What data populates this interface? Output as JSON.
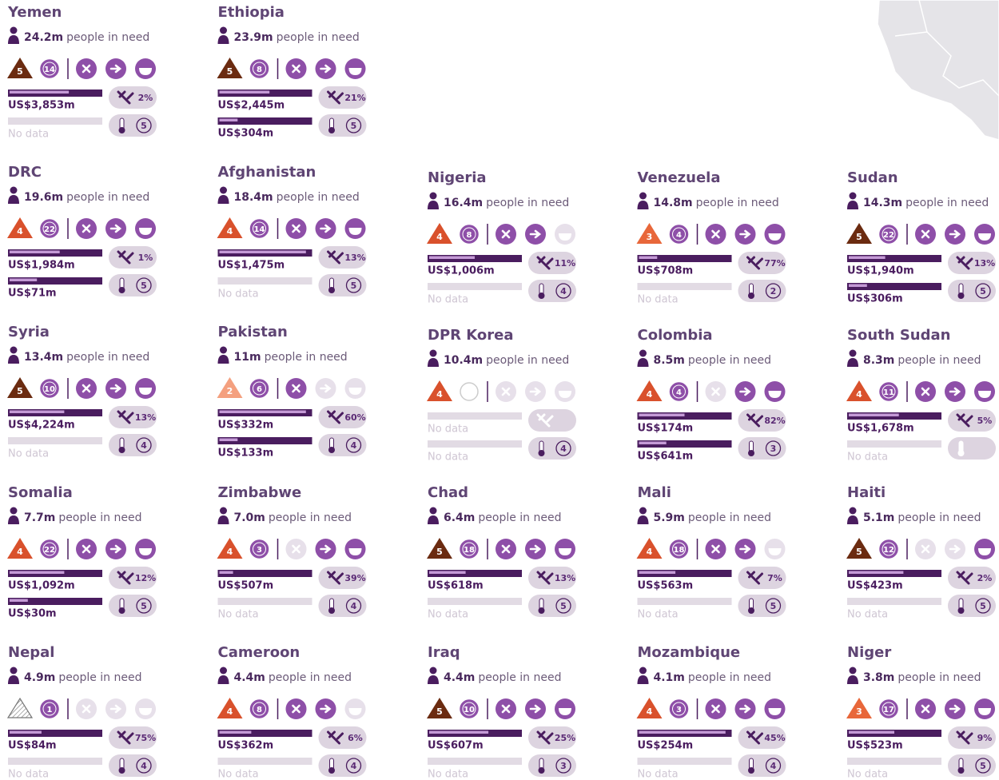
{
  "pin_label": "people in need",
  "severity_colors": {
    "2": "#f4a07f",
    "3": "#e8673a",
    "4": "#d9512c",
    "5": "#6b2b10"
  },
  "countries": [
    {
      "name": "Yemen",
      "pin": "24.2m",
      "severity": 5,
      "duration": 14,
      "icons": [
        true,
        true,
        true
      ],
      "funding": [
        {
          "label": "US$3,853m",
          "fill": 0.65
        },
        {
          "label": "No data",
          "fill": null
        }
      ],
      "vaccine": "2%",
      "temperature": 5
    },
    {
      "name": "Ethiopia",
      "pin": "23.9m",
      "severity": 5,
      "duration": 8,
      "icons": [
        true,
        true,
        true
      ],
      "funding": [
        {
          "label": "US$2,445m",
          "fill": 0.55
        },
        {
          "label": "US$304m",
          "fill": 0.2
        }
      ],
      "vaccine": "21%",
      "temperature": 5
    },
    {
      "name": "DRC",
      "pin": "19.6m",
      "severity": 4,
      "duration": 22,
      "icons": [
        true,
        true,
        true
      ],
      "funding": [
        {
          "label": "US$1,984m",
          "fill": 0.55
        },
        {
          "label": "US$71m",
          "fill": 0.3
        }
      ],
      "vaccine": "1%",
      "temperature": 5
    },
    {
      "name": "Afghanistan",
      "pin": "18.4m",
      "severity": 4,
      "duration": 14,
      "icons": [
        true,
        true,
        true
      ],
      "funding": [
        {
          "label": "US$1,475m",
          "fill": 0.95
        },
        {
          "label": "No data",
          "fill": null
        }
      ],
      "vaccine": "13%",
      "temperature": 5
    },
    {
      "name": "Nigeria",
      "pin": "16.4m",
      "severity": 4,
      "duration": 8,
      "icons": [
        true,
        true,
        false
      ],
      "funding": [
        {
          "label": "US$1,006m",
          "fill": 0.5
        },
        {
          "label": "No data",
          "fill": null
        }
      ],
      "vaccine": "11%",
      "temperature": 4
    },
    {
      "name": "Venezuela",
      "pin": "14.8m",
      "severity": 3,
      "duration": 4,
      "icons": [
        true,
        true,
        true
      ],
      "funding": [
        {
          "label": "US$708m",
          "fill": 0.2
        },
        {
          "label": "No data",
          "fill": null
        }
      ],
      "vaccine": "77%",
      "temperature": 2
    },
    {
      "name": "Sudan",
      "pin": "14.3m",
      "severity": 5,
      "duration": 22,
      "icons": [
        true,
        true,
        true
      ],
      "funding": [
        {
          "label": "US$1,940m",
          "fill": 0.4
        },
        {
          "label": "US$306m",
          "fill": 0.2
        }
      ],
      "vaccine": "13%",
      "temperature": 5
    },
    {
      "name": "Syria",
      "pin": "13.4m",
      "severity": 5,
      "duration": 10,
      "icons": [
        true,
        true,
        true
      ],
      "funding": [
        {
          "label": "US$4,224m",
          "fill": 0.6
        },
        {
          "label": "No data",
          "fill": null
        }
      ],
      "vaccine": "13%",
      "temperature": 4
    },
    {
      "name": "Pakistan",
      "pin": "11m",
      "severity": 2,
      "duration": 6,
      "icons": [
        true,
        false,
        false
      ],
      "funding": [
        {
          "label": "US$332m",
          "fill": 0.95
        },
        {
          "label": "US$133m",
          "fill": 0.2
        }
      ],
      "vaccine": "60%",
      "temperature": 4
    },
    {
      "name": "DPR Korea",
      "pin": "10.4m",
      "severity": 4,
      "duration": null,
      "icons": [
        false,
        false,
        false
      ],
      "funding": [
        {
          "label": "No data",
          "fill": null
        },
        {
          "label": "No data",
          "fill": null
        }
      ],
      "vaccine": null,
      "temperature": 4
    },
    {
      "name": "Colombia",
      "pin": "8.5m",
      "severity": 4,
      "duration": 4,
      "icons": [
        false,
        true,
        true
      ],
      "funding": [
        {
          "label": "US$174m",
          "fill": 0.5
        },
        {
          "label": "US$641m",
          "fill": 0.3
        }
      ],
      "vaccine": "82%",
      "temperature": 3
    },
    {
      "name": "South Sudan",
      "pin": "8.3m",
      "severity": 4,
      "duration": 11,
      "icons": [
        true,
        true,
        true
      ],
      "funding": [
        {
          "label": "US$1,678m",
          "fill": 0.55
        },
        {
          "label": "No data",
          "fill": null
        }
      ],
      "vaccine": "5%",
      "temperature": null
    },
    {
      "name": "Somalia",
      "pin": "7.7m",
      "severity": 4,
      "duration": 22,
      "icons": [
        true,
        true,
        true
      ],
      "funding": [
        {
          "label": "US$1,092m",
          "fill": 0.6
        },
        {
          "label": "US$30m",
          "fill": 0.2
        }
      ],
      "vaccine": "12%",
      "temperature": 5
    },
    {
      "name": "Zimbabwe",
      "pin": "7.0m",
      "severity": 4,
      "duration": 3,
      "icons": [
        false,
        true,
        true
      ],
      "funding": [
        {
          "label": "US$507m",
          "fill": 0.15
        },
        {
          "label": "No data",
          "fill": null
        }
      ],
      "vaccine": "39%",
      "temperature": 4
    },
    {
      "name": "Chad",
      "pin": "6.4m",
      "severity": 5,
      "duration": 18,
      "icons": [
        true,
        true,
        true
      ],
      "funding": [
        {
          "label": "US$618m",
          "fill": 0.4
        },
        {
          "label": "No data",
          "fill": null
        }
      ],
      "vaccine": "13%",
      "temperature": 5
    },
    {
      "name": "Mali",
      "pin": "5.9m",
      "severity": 4,
      "duration": 18,
      "icons": [
        true,
        true,
        false
      ],
      "funding": [
        {
          "label": "US$563m",
          "fill": 0.4
        },
        {
          "label": "No data",
          "fill": null
        }
      ],
      "vaccine": "7%",
      "temperature": 5
    },
    {
      "name": "Haiti",
      "pin": "5.1m",
      "severity": 5,
      "duration": 12,
      "icons": [
        false,
        false,
        true
      ],
      "funding": [
        {
          "label": "US$423m",
          "fill": 0.6
        },
        {
          "label": "No data",
          "fill": null
        }
      ],
      "vaccine": "2%",
      "temperature": 5
    },
    {
      "name": "Nepal",
      "pin": "4.9m",
      "severity": null,
      "duration": 1,
      "icons": [
        false,
        false,
        false
      ],
      "funding": [
        {
          "label": "US$84m",
          "fill": 0.35
        },
        {
          "label": "No data",
          "fill": null
        }
      ],
      "vaccine": "75%",
      "temperature": 4
    },
    {
      "name": "Cameroon",
      "pin": "4.4m",
      "severity": 4,
      "duration": 8,
      "icons": [
        true,
        true,
        false
      ],
      "funding": [
        {
          "label": "US$362m",
          "fill": 0.35
        },
        {
          "label": "No data",
          "fill": null
        }
      ],
      "vaccine": "6%",
      "temperature": 4
    },
    {
      "name": "Iraq",
      "pin": "4.4m",
      "severity": 5,
      "duration": 10,
      "icons": [
        true,
        true,
        true
      ],
      "funding": [
        {
          "label": "US$607m",
          "fill": 0.65
        },
        {
          "label": "No data",
          "fill": null
        }
      ],
      "vaccine": "25%",
      "temperature": 3
    },
    {
      "name": "Mozambique",
      "pin": "4.1m",
      "severity": 4,
      "duration": 3,
      "icons": [
        true,
        true,
        true
      ],
      "funding": [
        {
          "label": "US$254m",
          "fill": 0.95
        },
        {
          "label": "No data",
          "fill": null
        }
      ],
      "vaccine": "45%",
      "temperature": 4
    },
    {
      "name": "Niger",
      "pin": "3.8m",
      "severity": 3,
      "duration": 17,
      "icons": [
        true,
        true,
        true
      ],
      "funding": [
        {
          "label": "US$523m",
          "fill": 0.5
        },
        {
          "label": "No data",
          "fill": null
        }
      ],
      "vaccine": "9%",
      "temperature": 5
    }
  ]
}
